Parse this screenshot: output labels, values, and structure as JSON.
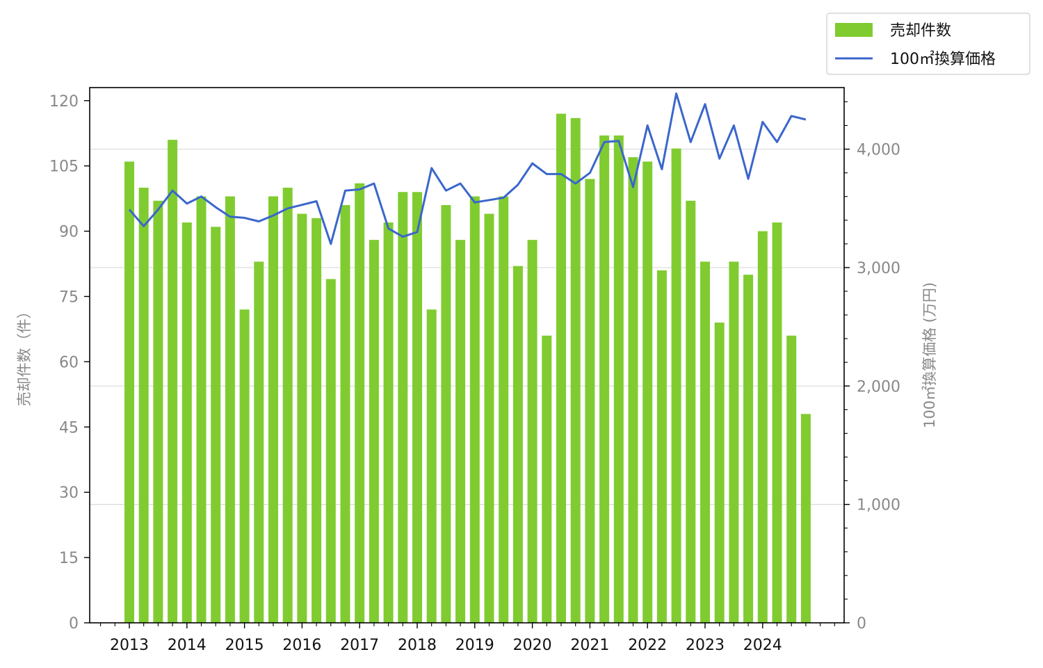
{
  "chart_data": {
    "type": "bar+line",
    "x": [
      "2013 Q1",
      "2013 Q2",
      "2013 Q3",
      "2013 Q4",
      "2014 Q1",
      "2014 Q2",
      "2014 Q3",
      "2014 Q4",
      "2015 Q1",
      "2015 Q2",
      "2015 Q3",
      "2015 Q4",
      "2016 Q1",
      "2016 Q2",
      "2016 Q3",
      "2016 Q4",
      "2017 Q1",
      "2017 Q2",
      "2017 Q3",
      "2017 Q4",
      "2018 Q1",
      "2018 Q2",
      "2018 Q3",
      "2018 Q4",
      "2019 Q1",
      "2019 Q2",
      "2019 Q3",
      "2019 Q4",
      "2020 Q1",
      "2020 Q2",
      "2020 Q3",
      "2020 Q4",
      "2021 Q1",
      "2021 Q2",
      "2021 Q3",
      "2021 Q4",
      "2022 Q1",
      "2022 Q2",
      "2022 Q3",
      "2022 Q4",
      "2023 Q1",
      "2023 Q2",
      "2023 Q3",
      "2023 Q4",
      "2024 Q1",
      "2024 Q2",
      "2024 Q3",
      "2024 Q4"
    ],
    "x_tick_labels": [
      "2013",
      "2014",
      "2015",
      "2016",
      "2017",
      "2018",
      "2019",
      "2020",
      "2021",
      "2022",
      "2023",
      "2024"
    ],
    "series": [
      {
        "name": "売却件数",
        "type": "bar",
        "axis": "left",
        "color": "#80cc30",
        "values": [
          106,
          100,
          97,
          111,
          92,
          98,
          91,
          98,
          72,
          83,
          98,
          100,
          94,
          93,
          79,
          96,
          101,
          88,
          92,
          99,
          99,
          72,
          96,
          88,
          98,
          94,
          98,
          82,
          88,
          66,
          117,
          116,
          102,
          112,
          112,
          107,
          106,
          81,
          109,
          97,
          83,
          69,
          83,
          80,
          90,
          92,
          66,
          48
        ]
      },
      {
        "name": "100㎡換算価格",
        "type": "line",
        "axis": "right",
        "color": "#3a66cc",
        "values": [
          3490,
          3350,
          3490,
          3650,
          3540,
          3600,
          3510,
          3430,
          3420,
          3390,
          3440,
          3500,
          3530,
          3560,
          3200,
          3650,
          3660,
          3710,
          3330,
          3260,
          3300,
          3840,
          3650,
          3710,
          3550,
          3570,
          3590,
          3700,
          3880,
          3790,
          3790,
          3710,
          3800,
          4060,
          4070,
          3680,
          4200,
          3830,
          4470,
          4060,
          4380,
          3920,
          4200,
          3750,
          4230,
          4060,
          4280,
          4250
        ]
      }
    ],
    "left_axis": {
      "label": "売却件数（件）",
      "ticks": [
        "0",
        "15",
        "30",
        "45",
        "60",
        "75",
        "90",
        "105",
        "120"
      ],
      "ylim": [
        0,
        123
      ]
    },
    "right_axis": {
      "label": "100㎡換算価格 (万円)",
      "ticks": [
        "0",
        "1,000",
        "2,000",
        "3,000",
        "4,000"
      ],
      "ylim": [
        0,
        4520
      ]
    },
    "legend": {
      "placement": "top-right-outside",
      "entries": [
        "売却件数",
        "100㎡換算価格"
      ]
    },
    "grid": "horizontal (right axis major ticks)"
  }
}
